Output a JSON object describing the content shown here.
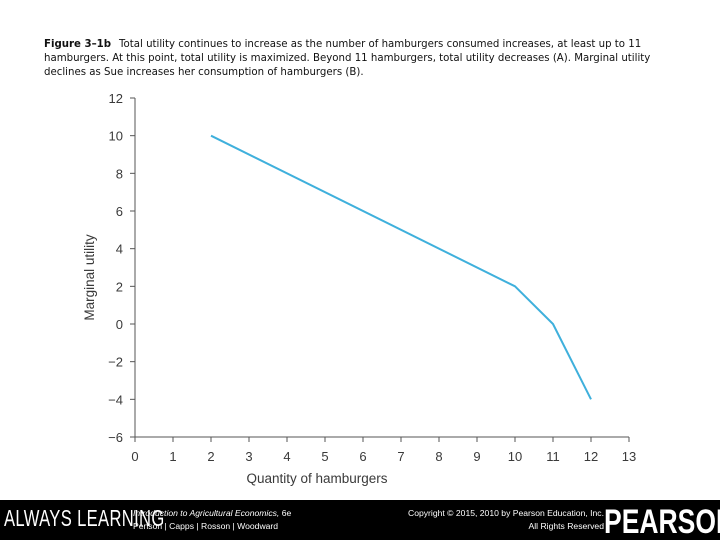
{
  "caption": {
    "figure_label": "Figure 3–1b",
    "text": "Total utility continues to increase as the number of hamburgers consumed increases, at least up to 11 hamburgers. At this point, total utility is maximized. Beyond 11 hamburgers, total utility decreases (A). Marginal utility declines as Sue increases her consumption of hamburgers (B)."
  },
  "chart_data": {
    "type": "line",
    "title": "",
    "xlabel": "Quantity of hamburgers",
    "ylabel": "Marginal utility",
    "xlim": [
      0,
      13
    ],
    "ylim": [
      -6,
      12
    ],
    "x_ticks": [
      0,
      1,
      2,
      3,
      4,
      5,
      6,
      7,
      8,
      9,
      10,
      11,
      12,
      13
    ],
    "y_ticks": [
      12,
      10,
      8,
      6,
      4,
      2,
      0,
      -2,
      -4,
      -6
    ],
    "y_tick_labels": [
      "12",
      "10",
      "8",
      "6",
      "4",
      "2",
      "0",
      "−2",
      "−4",
      "−6"
    ],
    "grid": false,
    "line_color": "#3fb0dc",
    "series": [
      {
        "x": [
          2,
          10,
          11,
          12
        ],
        "y": [
          10,
          2,
          0,
          -4
        ]
      }
    ]
  },
  "footer": {
    "brand_left": "ALWAYS LEARNING",
    "book_title": "Introduction to Agricultural Economics,",
    "book_edition": "6e",
    "book_authors": "Penson | Capps | Rosson | Woodward",
    "copyright_line1": "Copyright © 2015, 2010 by Pearson Education, Inc.",
    "copyright_line2": "All Rights Reserved",
    "brand_right": "PEARSON"
  }
}
